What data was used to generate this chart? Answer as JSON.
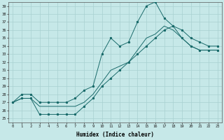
{
  "xlabel": "Humidex (Indice chaleur)",
  "background_color": "#c6e8e8",
  "grid_color": "#a8d0d0",
  "line_color": "#1a6b6b",
  "xlim": [
    -0.5,
    23.5
  ],
  "ylim": [
    24.5,
    39.5
  ],
  "xticks": [
    0,
    1,
    2,
    3,
    4,
    5,
    6,
    7,
    8,
    9,
    10,
    11,
    12,
    13,
    14,
    15,
    16,
    17,
    18,
    19,
    20,
    21,
    22,
    23
  ],
  "yticks": [
    25,
    26,
    27,
    28,
    29,
    30,
    31,
    32,
    33,
    34,
    35,
    36,
    37,
    38,
    39
  ],
  "line_max_x": [
    0,
    1,
    2,
    3,
    4,
    5,
    6,
    7,
    8,
    9,
    10,
    11,
    12,
    13,
    14,
    15,
    16,
    17,
    18,
    19,
    20,
    21,
    22,
    23
  ],
  "line_max_y": [
    27,
    28,
    28,
    27,
    27,
    27,
    27,
    27.5,
    28.5,
    29,
    33,
    35,
    34,
    34.5,
    37,
    39,
    39.5,
    37.5,
    36.5,
    36,
    35,
    34.5,
    34,
    34
  ],
  "line_mean_x": [
    0,
    1,
    2,
    3,
    4,
    5,
    6,
    7,
    8,
    9,
    10,
    11,
    12,
    13,
    14,
    15,
    16,
    17,
    18,
    19,
    20,
    21,
    22,
    23
  ],
  "line_mean_y": [
    27,
    27.5,
    27.5,
    26.5,
    26.5,
    26.5,
    26.5,
    26.5,
    27,
    28,
    29.5,
    31,
    31.5,
    32,
    33.5,
    35,
    35.5,
    36.5,
    36,
    35,
    34,
    33.5,
    33.5,
    33.5
  ],
  "line_min_x": [
    0,
    1,
    2,
    3,
    4,
    5,
    6,
    7,
    8,
    9,
    10,
    11,
    12,
    13,
    14,
    15,
    16,
    17,
    18,
    19,
    20,
    21,
    22,
    23
  ],
  "line_min_y": [
    27,
    27.5,
    27.5,
    25.5,
    25.5,
    25.5,
    25.5,
    25.5,
    26.5,
    27.5,
    29,
    30,
    31,
    32,
    33,
    34,
    35,
    36,
    36.5,
    35,
    34,
    33.5,
    33.5,
    33.5
  ]
}
